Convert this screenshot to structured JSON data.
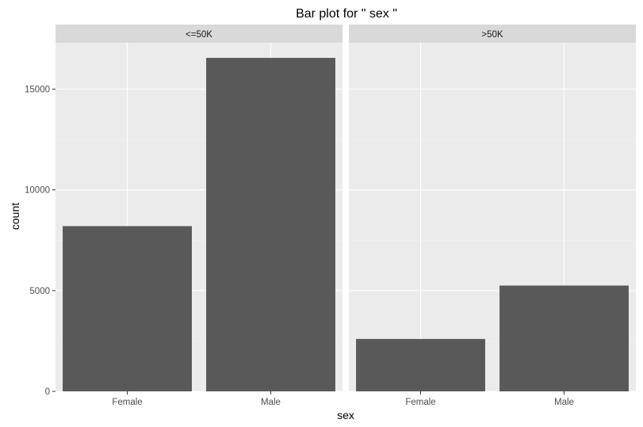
{
  "chart_data": {
    "type": "bar",
    "title": "Bar plot for \" sex \"",
    "xlabel": "sex",
    "ylabel": "count",
    "categories": [
      "Female",
      "Male"
    ],
    "ylim": [
      0,
      17300
    ],
    "yticks": [
      0,
      5000,
      10000,
      15000
    ],
    "ytick_labels": [
      "0",
      "5000",
      "10000",
      "15000"
    ],
    "grid": true,
    "bar_color": "#595959",
    "panel_background": "#ebebeb",
    "strip_background": "#d9d9d9",
    "panels": [
      {
        "label": "<=50K",
        "values": [
          8200,
          16550
        ]
      },
      {
        "label": ">50K",
        "values": [
          2600,
          5250
        ]
      }
    ]
  }
}
